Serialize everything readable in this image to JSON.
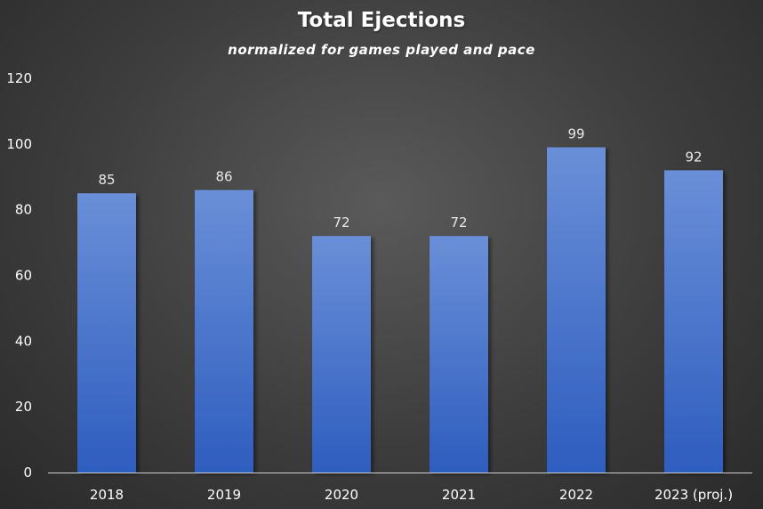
{
  "chart_data": {
    "type": "bar",
    "title": "Total Ejections",
    "subtitle": "normalized for games played and pace",
    "categories": [
      "2018",
      "2019",
      "2020",
      "2021",
      "2022",
      "2023 (proj.)"
    ],
    "values": [
      85,
      86,
      72,
      72,
      99,
      92
    ],
    "ylim": [
      0,
      120
    ],
    "yticks": [
      0,
      20,
      40,
      60,
      80,
      100,
      120
    ],
    "xlabel": "",
    "ylabel": "",
    "grid": false,
    "legend": "none",
    "data_labels": true,
    "colors": {
      "bar_top": "#6a8fd8",
      "bar_bottom": "#2e5dbf",
      "axis": "#cfcfcf"
    }
  }
}
